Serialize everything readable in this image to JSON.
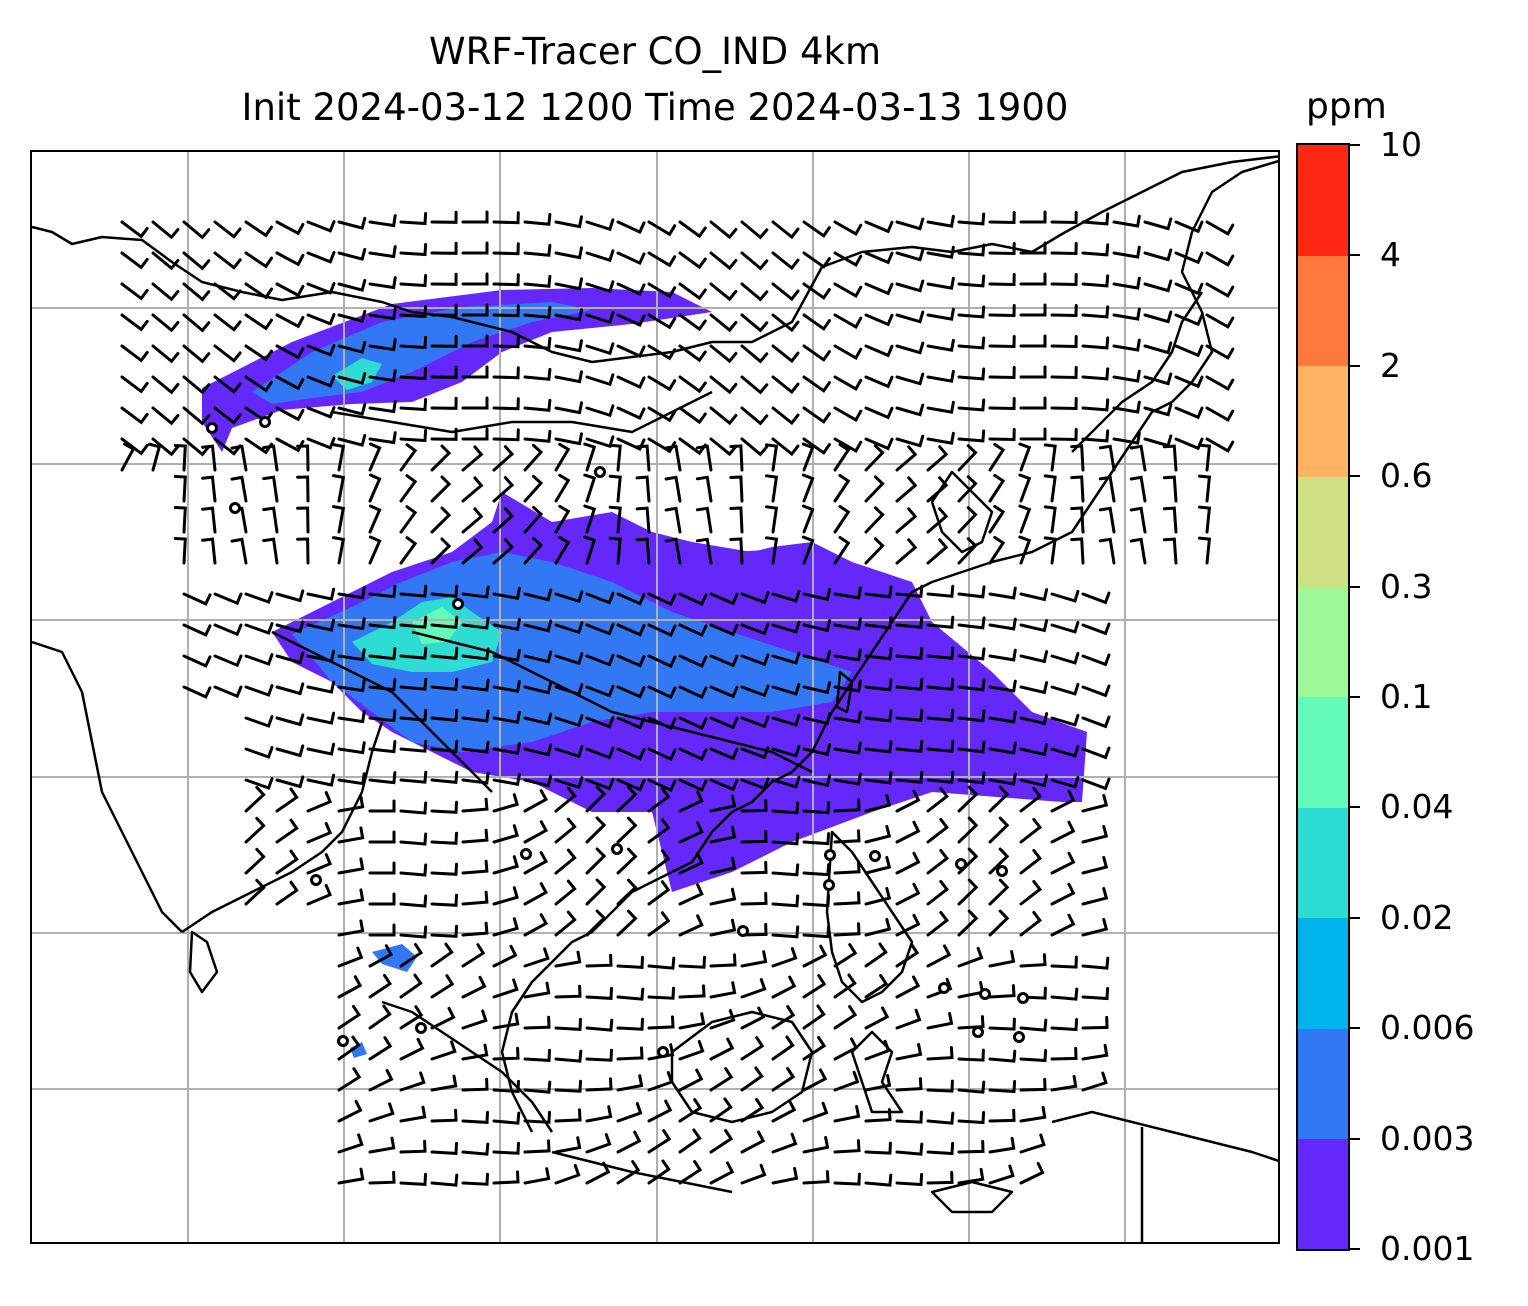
{
  "title_line1": "WRF-Tracer CO_IND 4km",
  "title_line2": "Init 2024-03-12 1200 Time 2024-03-13 1900",
  "colorbar": {
    "units": "ppm",
    "levels": [
      "0.001",
      "0.003",
      "0.006",
      "0.02",
      "0.04",
      "0.1",
      "0.3",
      "0.6",
      "2",
      "4",
      "10"
    ],
    "colors": [
      "#6428fa",
      "#3278f5",
      "#00b4eb",
      "#2ddcd2",
      "#64faba",
      "#9bfa96",
      "#cde182",
      "#ffb464",
      "#ff783c",
      "#ff2814"
    ]
  },
  "map": {
    "plume_colors": [
      "#6428fa",
      "#3278f5",
      "#2ddcd2"
    ]
  }
}
